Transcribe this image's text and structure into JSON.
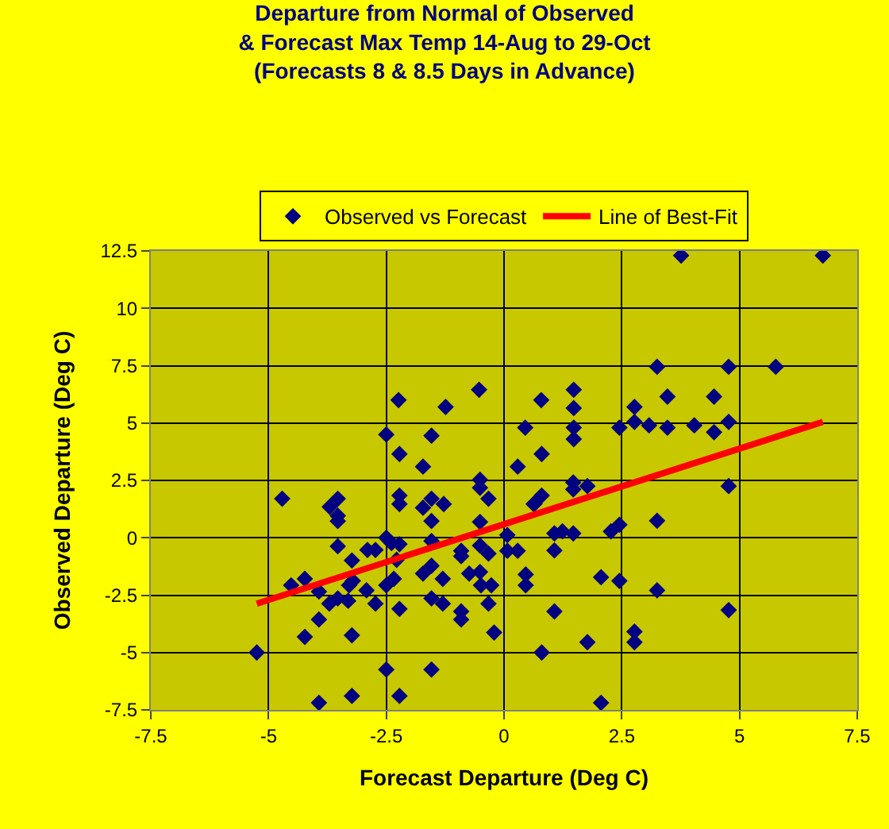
{
  "chart_data": {
    "type": "scatter",
    "title": "Departure from Normal of Observed\n& Forecast Max Temp 14-Aug to 29-Oct\n(Forecasts 8 & 8.5 Days in Advance)",
    "xlabel": "Forecast Departure (Deg C)",
    "ylabel": "Observed Departure (Deg C)",
    "xlim": [
      -7.5,
      7.5
    ],
    "ylim": [
      -7.5,
      12.5
    ],
    "xticks": [
      -7.5,
      -5,
      -2.5,
      0,
      2.5,
      5,
      7.5
    ],
    "yticks": [
      -7.5,
      -5,
      -2.5,
      0,
      2.5,
      5,
      7.5,
      10,
      12.5
    ],
    "grid": true,
    "legend": "top",
    "series": [
      {
        "name": "Observed vs Forecast",
        "marker": "diamond",
        "color": "#000080",
        "x": [
          -2.24,
          -1.24,
          -0.53,
          -2.5,
          -2.22,
          -1.54,
          -1.72,
          0.45,
          0.29,
          0.79,
          0.8,
          3.76,
          6.77,
          1.48,
          1.48,
          1.48,
          1.48,
          2.77,
          2.77,
          2.45,
          3.08,
          3.25,
          3.47,
          3.47,
          4.04,
          4.46,
          4.46,
          4.77,
          4.77,
          5.77,
          -4.71,
          -3.7,
          -3.53,
          -3.53,
          -3.53,
          -2.22,
          -2.22,
          -1.54,
          -1.72,
          -1.54,
          -1.28,
          -0.51,
          -0.51,
          -0.33,
          -0.51,
          0.63,
          -3.53,
          -2.5,
          -2.39,
          -2.22,
          -1.54,
          -2.9,
          -2.73,
          -3.23,
          -4.52,
          -4.23,
          -3.93,
          -3.71,
          -3.53,
          -3.31,
          -3.29,
          -3.21,
          -2.92,
          -2.73,
          -2.5,
          -2.34,
          -2.22,
          -2.28,
          -1.72,
          -1.54,
          -1.3,
          -1.54,
          -1.3,
          -0.91,
          -0.91,
          -0.91,
          -0.91,
          -0.51,
          -0.74,
          -0.51,
          -0.33,
          -0.27,
          -0.49,
          -0.33,
          -0.21,
          0.07,
          0.07,
          0.29,
          0.46,
          0.46,
          -5.25,
          -4.23,
          -3.93,
          -3.23,
          -2.5,
          -1.54,
          -3.23,
          -3.93,
          -2.22,
          1.47,
          1.47,
          1.77,
          0.8,
          0.65,
          4.77,
          2.45,
          3.25,
          2.27,
          1.07,
          1.24,
          1.47,
          1.07,
          2.06,
          2.45,
          3.25,
          1.07,
          4.77,
          2.77,
          2.77,
          1.77,
          0.8,
          2.06
        ],
        "values": [
          6.0,
          5.7,
          6.45,
          4.5,
          3.65,
          4.45,
          3.1,
          4.8,
          3.1,
          6.0,
          3.65,
          12.3,
          12.3,
          6.45,
          5.65,
          4.8,
          4.3,
          5.7,
          5.05,
          4.8,
          4.9,
          7.45,
          6.15,
          4.8,
          4.9,
          6.15,
          4.6,
          5.05,
          7.45,
          7.45,
          1.7,
          1.35,
          1.7,
          0.96,
          0.73,
          1.84,
          1.47,
          1.7,
          1.31,
          0.73,
          1.47,
          2.53,
          2.18,
          1.7,
          0.69,
          1.47,
          -0.37,
          0,
          -0.23,
          -0.28,
          -0.14,
          -0.53,
          -0.53,
          -0.99,
          -2.07,
          -1.79,
          -2.34,
          -2.87,
          -2.64,
          -2.75,
          -2.07,
          -1.88,
          -2.29,
          -2.87,
          -2.07,
          -1.79,
          -3.1,
          -0.96,
          -1.56,
          -1.22,
          -1.79,
          -2.64,
          -2.87,
          -0.57,
          -0.8,
          -3.21,
          -3.56,
          -0.34,
          -1.56,
          -1.49,
          -0.69,
          -2.07,
          -2.07,
          -2.87,
          -4.13,
          0.12,
          -0.57,
          -0.57,
          -1.6,
          -2.07,
          -5.0,
          -4.32,
          -3.56,
          -4.25,
          -5.74,
          -5.74,
          -6.89,
          -7.19,
          -6.89,
          2.41,
          2.11,
          2.25,
          1.84,
          1.49,
          2.25,
          0.57,
          0.74,
          0.28,
          0.19,
          0.28,
          0.19,
          -0.55,
          -1.72,
          -1.88,
          -2.29,
          -3.21,
          -3.15,
          -4.09,
          -4.55,
          -4.55,
          -5.0,
          -7.19
        ]
      },
      {
        "name": "Line of Best-Fit",
        "type": "line",
        "marker": "none",
        "color": "#ff0000",
        "line_style": "solid",
        "x": [
          -5.25,
          6.77
        ],
        "values": [
          -2.87,
          5.05
        ]
      }
    ]
  }
}
